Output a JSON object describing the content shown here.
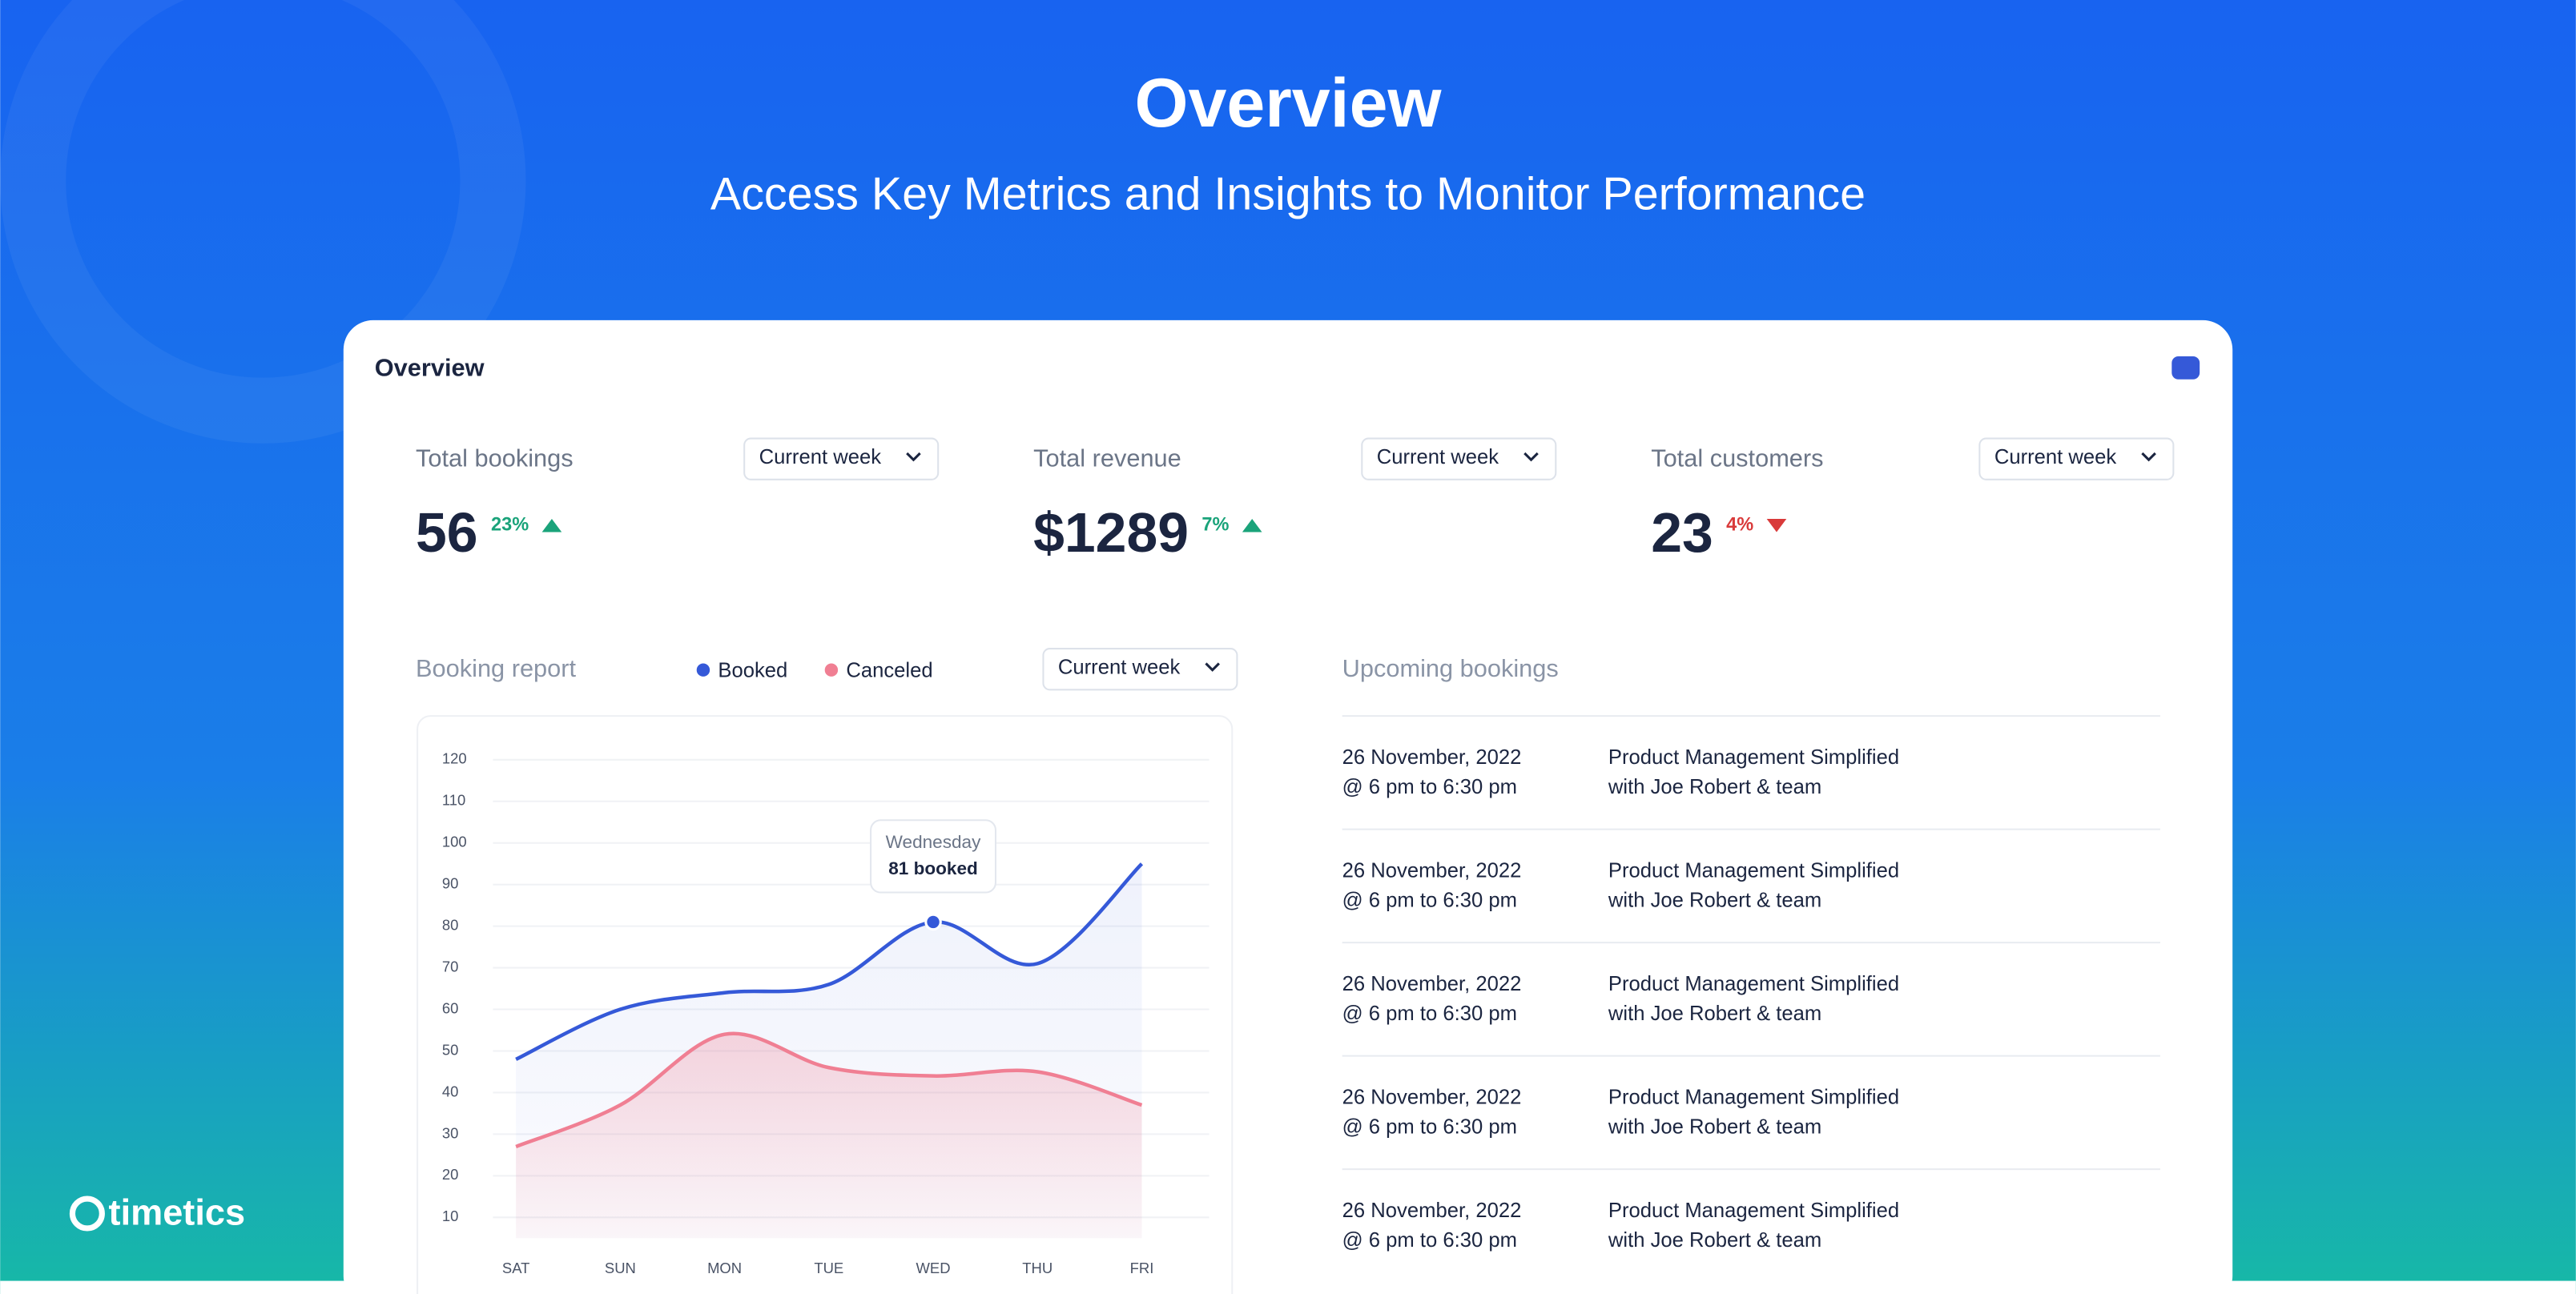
{
  "header": {
    "title": "Overview",
    "subtitle": "Access Key Metrics and Insights to Monitor Performance"
  },
  "brand": "timetics",
  "card": {
    "title": "Overview",
    "metrics": [
      {
        "label": "Total bookings",
        "period": "Current week",
        "value": "56",
        "change": "23%",
        "trend": "up"
      },
      {
        "label": "Total revenue",
        "period": "Current week",
        "value": "$1289",
        "change": "7%",
        "trend": "up"
      },
      {
        "label": "Total customers",
        "period": "Current week",
        "value": "23",
        "change": "4%",
        "trend": "down"
      }
    ],
    "report": {
      "title": "Booking report",
      "period": "Current week"
    },
    "upcoming": {
      "title": "Upcoming bookings",
      "items": [
        {
          "date": "26 November, 2022",
          "time": "@ 6 pm to 6:30 pm",
          "title": "Product Management Simplified",
          "host": "with Joe Robert & team"
        },
        {
          "date": "26 November, 2022",
          "time": "@ 6 pm to 6:30 pm",
          "title": "Product Management Simplified",
          "host": "with Joe Robert & team"
        },
        {
          "date": "26 November, 2022",
          "time": "@ 6 pm to 6:30 pm",
          "title": "Product Management Simplified",
          "host": "with Joe Robert & team"
        },
        {
          "date": "26 November, 2022",
          "time": "@ 6 pm to 6:30 pm",
          "title": "Product Management Simplified",
          "host": "with Joe Robert & team"
        },
        {
          "date": "26 November, 2022",
          "time": "@ 6 pm to 6:30 pm",
          "title": "Product Management Simplified",
          "host": "with Joe Robert & team"
        }
      ]
    }
  },
  "chart_data": {
    "type": "line",
    "categories": [
      "SAT",
      "SUN",
      "MON",
      "TUE",
      "WED",
      "THU",
      "FRI"
    ],
    "series": [
      {
        "name": "Booked",
        "color": "#3559d8",
        "values": [
          48,
          60,
          64,
          66,
          81,
          71,
          95
        ]
      },
      {
        "name": "Canceled",
        "color": "#f07f93",
        "values": [
          27,
          37,
          54,
          46,
          44,
          45,
          37
        ]
      }
    ],
    "ylim": [
      5,
      125
    ],
    "yticks": [
      10,
      20,
      30,
      40,
      50,
      60,
      70,
      80,
      90,
      100,
      110,
      120
    ],
    "tooltip": {
      "series": 0,
      "index": 4,
      "day": "Wednesday",
      "label": "81 booked"
    }
  }
}
